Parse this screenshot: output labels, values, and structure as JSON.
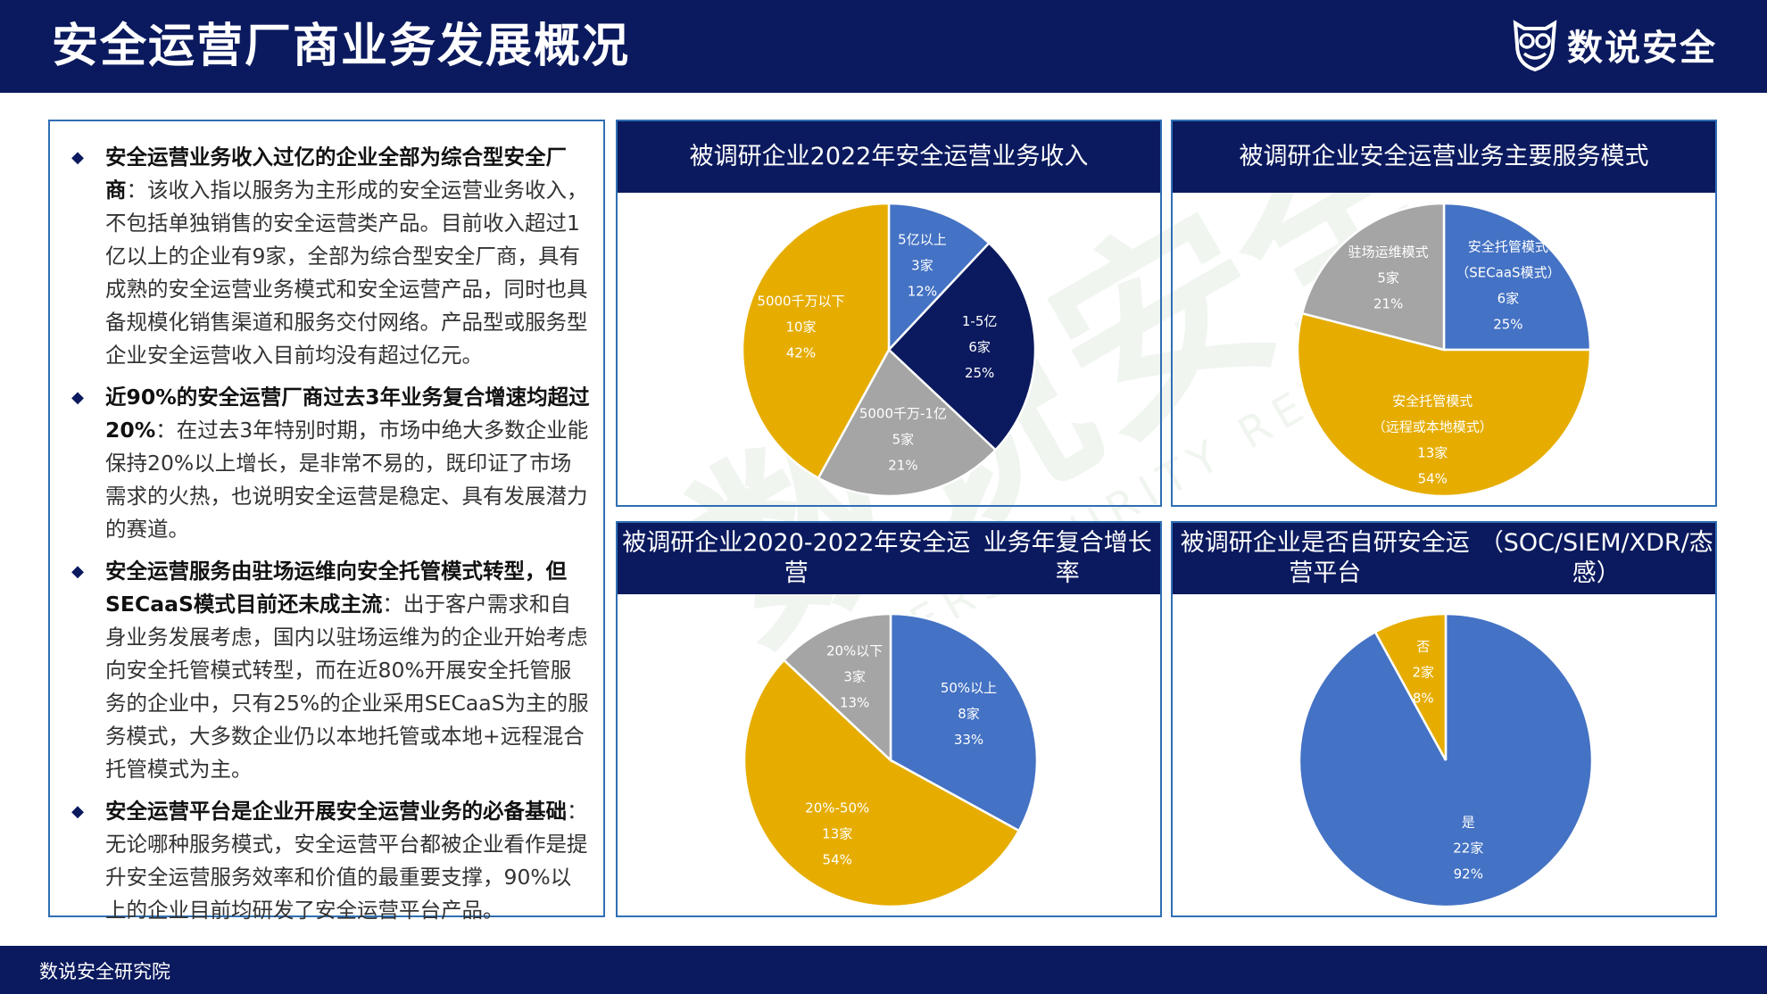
{
  "header": {
    "title": "安全运营厂商业务发展概况",
    "logo_text": "数说安全"
  },
  "footer": {
    "text": "数说安全研究院"
  },
  "colors": {
    "navy": "#0b1a5e",
    "blue": "#4472c4",
    "gold": "#e6ad00",
    "gray": "#a5a5a5",
    "frame": "#2f6fb4"
  },
  "watermark": {
    "text_cn": "数说安全",
    "text_en": "CYBERSECURITY REVIEW"
  },
  "bullets": [
    {
      "bold": "安全运营业务收入过亿的企业全部为综合型安全厂商",
      "text": "：该收入指以服务为主形成的安全运营业务收入，不包括单独销售的安全运营类产品。目前收入超过1亿以上的企业有9家，全部为综合型安全厂商，具有成熟的安全运营业务模式和安全运营产品，同时也具备规模化销售渠道和服务交付网络。产品型或服务型企业安全运营收入目前均没有超过亿元。"
    },
    {
      "bold": "近90%的安全运营厂商过去3年业务复合增速均超过20%",
      "text": "：在过去3年特别时期，市场中绝大多数企业能保持20%以上增长，是非常不易的，既印证了市场需求的火热，也说明安全运营是稳定、具有发展潜力的赛道。"
    },
    {
      "bold": "安全运营服务由驻场运维向安全托管模式转型，但SECaaS模式目前还未成主流",
      "text": "：出于客户需求和自身业务发展考虑，国内以驻场运维为的企业开始考虑向安全托管模式转型，而在近80%开展安全托管服务的企业中，只有25%的企业采用SECaaS为主的服务模式，大多数企业仍以本地托管或本地+远程混合托管模式为主。"
    },
    {
      "bold": "安全运营平台是企业开展安全运营业务的必备基础",
      "text": "：无论哪种服务模式，安全运营平台都被企业看作是提升安全运营服务效率和价值的最重要支撑，90%以上的企业目前均研发了安全运营平台产品。"
    }
  ],
  "chart_data": [
    {
      "type": "pie",
      "title": "被调研企业2022年安全运营业务收入",
      "slices": [
        {
          "label": "5亿以上",
          "count": "3家",
          "value": 12,
          "pct": "12%",
          "color": "#4472c4"
        },
        {
          "label": "1-5亿",
          "count": "6家",
          "value": 25,
          "pct": "25%",
          "color": "#0b1a5e"
        },
        {
          "label": "5000千万-1亿",
          "count": "5家",
          "value": 21,
          "pct": "21%",
          "color": "#a5a5a5"
        },
        {
          "label": "5000千万以下",
          "count": "10家",
          "value": 42,
          "pct": "42%",
          "color": "#e6ad00"
        }
      ]
    },
    {
      "type": "pie",
      "title": "被调研企业安全运营业务主要服务模式",
      "slices": [
        {
          "label": "安全托管模式",
          "label2": "（SECaaS模式）",
          "count": "6家",
          "value": 25,
          "pct": "25%",
          "color": "#4472c4"
        },
        {
          "label": "安全托管模式",
          "label2": "（远程或本地模式）",
          "count": "13家",
          "value": 54,
          "pct": "54%",
          "color": "#e6ad00"
        },
        {
          "label": "驻场运维模式",
          "count": "5家",
          "value": 21,
          "pct": "21%",
          "color": "#a5a5a5"
        }
      ]
    },
    {
      "type": "pie",
      "title": "被调研企业2020-2022年安全运营",
      "title2": "业务年复合增长率",
      "slices": [
        {
          "label": "50%以上",
          "count": "8家",
          "value": 33,
          "pct": "33%",
          "color": "#4472c4"
        },
        {
          "label": "20%-50%",
          "count": "13家",
          "value": 54,
          "pct": "54%",
          "color": "#e6ad00"
        },
        {
          "label": "20%以下",
          "count": "3家",
          "value": 13,
          "pct": "13%",
          "color": "#a5a5a5"
        }
      ]
    },
    {
      "type": "pie",
      "title": "被调研企业是否自研安全运营平台",
      "title2": "（SOC/SIEM/XDR/态感）",
      "slices": [
        {
          "label": "是",
          "count": "22家",
          "value": 92,
          "pct": "92%",
          "color": "#4472c4"
        },
        {
          "label": "否",
          "count": "2家",
          "value": 8,
          "pct": "8%",
          "color": "#e6ad00"
        }
      ]
    }
  ]
}
